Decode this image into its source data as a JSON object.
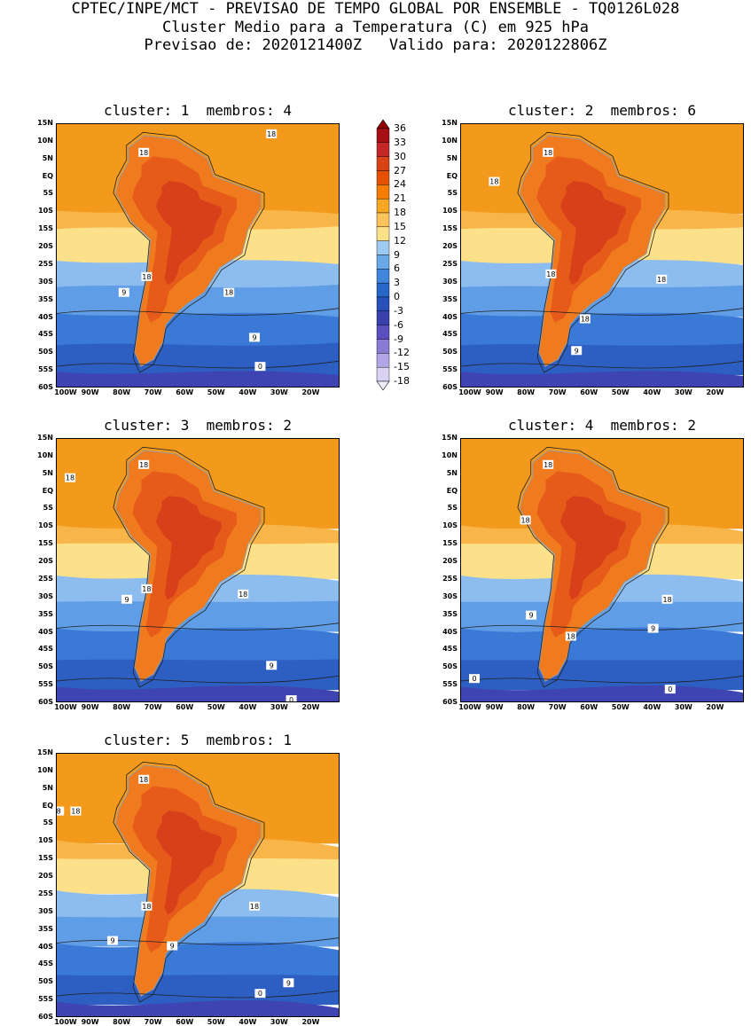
{
  "header": {
    "line1": "CPTEC/INPE/MCT - PREVISAO DE TEMPO GLOBAL POR ENSEMBLE - TQ0126L028",
    "line2": "Cluster Medio para a Temperatura (C) em 925 hPa",
    "line3": "Previsao de: 2020121400Z   Valido para: 2020122806Z"
  },
  "panels": [
    {
      "title": "cluster: 1  membros: 4",
      "contour_labels": [
        "18",
        "18",
        "18",
        "18",
        "9",
        "9",
        "0"
      ]
    },
    {
      "title": "cluster: 2  membros: 6",
      "contour_labels": [
        "18",
        "18",
        "18",
        "18",
        "18",
        "9"
      ]
    },
    {
      "title": "cluster: 3  membros: 2",
      "contour_labels": [
        "18",
        "18",
        "18",
        "18",
        "9",
        "9",
        "0"
      ]
    },
    {
      "title": "cluster: 4  membros: 2",
      "contour_labels": [
        "18",
        "18",
        "18",
        "18",
        "9",
        "9",
        "0",
        "0"
      ]
    },
    {
      "title": "cluster: 5  membros: 1",
      "contour_labels": [
        "18",
        "18",
        "18",
        "18",
        "8",
        "9",
        "9",
        "9",
        "0"
      ]
    }
  ],
  "lat_ticks": [
    "15N",
    "10N",
    "5N",
    "EQ",
    "5S",
    "10S",
    "15S",
    "20S",
    "25S",
    "30S",
    "35S",
    "40S",
    "45S",
    "50S",
    "55S",
    "60S"
  ],
  "lon_ticks": [
    "100W",
    "90W",
    "80W",
    "70W",
    "60W",
    "50W",
    "40W",
    "30W",
    "20W"
  ],
  "colorbar": {
    "labels": [
      "36",
      "33",
      "30",
      "27",
      "24",
      "21",
      "18",
      "15",
      "12",
      "9",
      "6",
      "3",
      "0",
      "-3",
      "-6",
      "-9",
      "-12",
      "-15",
      "-18"
    ],
    "colors": [
      "#a50f15",
      "#c62828",
      "#d84315",
      "#e65100",
      "#f57c00",
      "#f5a623",
      "#fbc35a",
      "#fde08a",
      "#9ec9f0",
      "#6aa8e8",
      "#3f86dc",
      "#2767c8",
      "#2950b8",
      "#3a3fae",
      "#5a4fbf",
      "#8a7ad6",
      "#b3a6e6",
      "#d9d2f3"
    ]
  }
}
